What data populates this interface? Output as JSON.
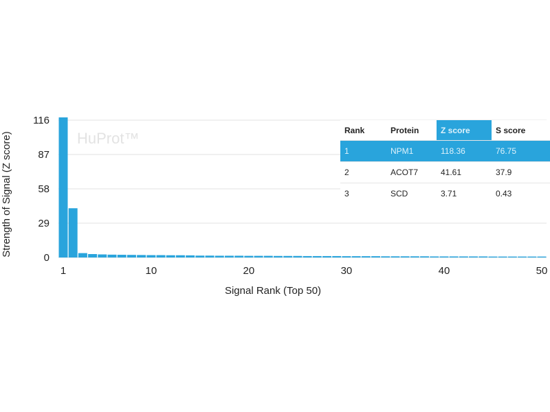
{
  "chart_data": {
    "type": "bar",
    "watermark": "HuProt™",
    "xlabel": "Signal Rank (Top 50)",
    "ylabel": "Strength of Signal (Z score)",
    "xticks": [
      "1",
      "10",
      "20",
      "30",
      "40",
      "50"
    ],
    "yticks": [
      "0",
      "29",
      "58",
      "87",
      "116"
    ],
    "ylim": [
      0,
      116
    ],
    "xlim": [
      1,
      50
    ],
    "grid": true,
    "bar_color": "#29a4dc",
    "x": [
      1,
      2,
      3,
      4,
      5,
      6,
      7,
      8,
      9,
      10,
      11,
      12,
      13,
      14,
      15,
      16,
      17,
      18,
      19,
      20,
      21,
      22,
      23,
      24,
      25,
      26,
      27,
      28,
      29,
      30,
      31,
      32,
      33,
      34,
      35,
      36,
      37,
      38,
      39,
      40,
      41,
      42,
      43,
      44,
      45,
      46,
      47,
      48,
      49,
      50
    ],
    "values": [
      118.36,
      41.61,
      3.71,
      2.9,
      2.6,
      2.4,
      2.3,
      2.2,
      2.1,
      2.0,
      2.0,
      1.9,
      1.9,
      1.8,
      1.6,
      1.6,
      1.5,
      1.5,
      1.5,
      1.4,
      1.4,
      1.4,
      1.3,
      1.3,
      1.3,
      1.2,
      1.2,
      1.2,
      1.2,
      1.1,
      1.1,
      1.1,
      1.1,
      1.0,
      1.0,
      1.0,
      1.0,
      1.0,
      0.9,
      0.9,
      0.9,
      0.9,
      0.9,
      0.9,
      0.8,
      0.8,
      0.8,
      0.8,
      0.8,
      0.8
    ]
  },
  "table": {
    "headers": [
      "Rank",
      "Protein",
      "Z score",
      "S score"
    ],
    "highlight_color": "#29a4dc",
    "rows": [
      [
        "1",
        "NPM1",
        "118.36",
        "76.75"
      ],
      [
        "2",
        "ACOT7",
        "41.61",
        "37.9"
      ],
      [
        "3",
        "SCD",
        "3.71",
        "0.43"
      ]
    ]
  }
}
